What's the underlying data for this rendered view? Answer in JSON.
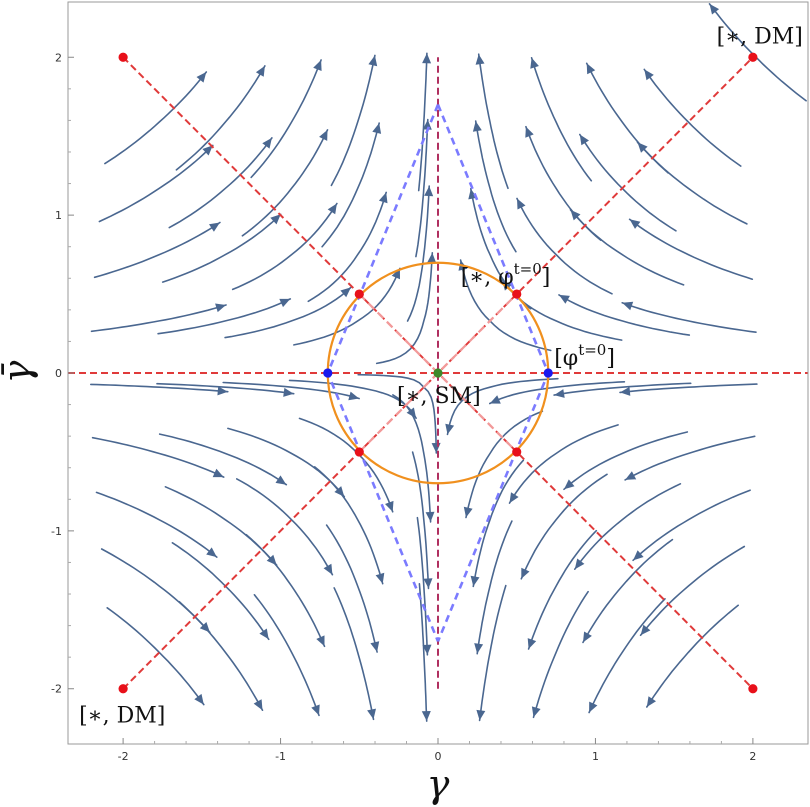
{
  "chart_data": {
    "type": "streamplot",
    "xlabel": "γ",
    "ylabel": "γ̄",
    "xlim": [
      -2.35,
      2.35
    ],
    "ylim": [
      -2.35,
      2.35
    ],
    "x_ticks": [
      -2,
      -1,
      0,
      1,
      2
    ],
    "y_ticks": [
      -2,
      -1,
      0,
      1,
      2
    ],
    "x_tick_labels": [
      "-2",
      "-1",
      "0",
      "1",
      "2"
    ],
    "y_tick_labels": [
      "-2",
      "-1",
      "0",
      "1",
      "2"
    ],
    "grid": false,
    "colors": {
      "stream": "#4a6790",
      "fixed_point_red": "#e8101a",
      "fixed_point_blue": "#1a1aee",
      "fixed_point_green": "#3c8a2a",
      "circle": "#f0901e",
      "separatrix_red": "#e03a3a",
      "separatrix_pink": "#f29a9a",
      "separatrix_blue": "#7b7bff",
      "separatrix_dark": "#b03060"
    },
    "vector_field": {
      "description": "saddle flow: inflow along gamma axis, outflow along gamma-bar axis",
      "u": "-x",
      "v": "y"
    },
    "circle": {
      "center": [
        0,
        0
      ],
      "radius": 0.7
    },
    "fixed_points": [
      {
        "x": 0,
        "y": 0,
        "color": "green"
      },
      {
        "x": -0.7,
        "y": 0,
        "color": "blue"
      },
      {
        "x": 0.7,
        "y": 0,
        "color": "blue"
      },
      {
        "x": -0.5,
        "y": 0.5,
        "color": "red"
      },
      {
        "x": 0.5,
        "y": 0.5,
        "color": "red"
      },
      {
        "x": -0.5,
        "y": -0.5,
        "color": "red"
      },
      {
        "x": 0.5,
        "y": -0.5,
        "color": "red"
      },
      {
        "x": -2,
        "y": 2,
        "color": "red"
      },
      {
        "x": 2,
        "y": 2,
        "color": "red"
      },
      {
        "x": -2,
        "y": -2,
        "color": "red"
      },
      {
        "x": 2,
        "y": -2,
        "color": "red"
      }
    ],
    "dashed_lines": [
      {
        "from": [
          -2,
          2
        ],
        "to": [
          2,
          -2
        ],
        "style": "red-dashed"
      },
      {
        "from": [
          -2,
          -2
        ],
        "to": [
          2,
          2
        ],
        "style": "red-dashed"
      },
      {
        "from": [
          -2.35,
          0
        ],
        "to": [
          2.35,
          0
        ],
        "style": "red-dashed"
      },
      {
        "from": [
          0,
          -2
        ],
        "to": [
          0,
          2
        ],
        "style": "dark-dashed"
      },
      {
        "from": [
          -0.5,
          0.5
        ],
        "to": [
          0.5,
          -0.5
        ],
        "style": "pink-dashed"
      },
      {
        "from": [
          -0.5,
          -0.5
        ],
        "to": [
          0.5,
          0.5
        ],
        "style": "pink-dashed"
      }
    ],
    "blue_dashed_paths": [
      [
        [
          0,
          1.7
        ],
        [
          -0.7,
          0
        ],
        [
          0,
          -1.7
        ]
      ],
      [
        [
          0,
          1.7
        ],
        [
          0.7,
          0
        ],
        [
          0,
          -1.7
        ]
      ]
    ],
    "annotations": [
      {
        "text": "[∗, DM]",
        "at": [
          2,
          2
        ],
        "anchor": "upper-right"
      },
      {
        "text": "[∗, DM]",
        "at": [
          -2,
          -2
        ],
        "anchor": "lower-left"
      },
      {
        "text": "[∗, SM]",
        "at": [
          0,
          0
        ],
        "anchor": "below-right"
      },
      {
        "text": "[∗, φ",
        "sup": "t=0",
        "suffix": "]",
        "at": [
          0.5,
          0.5
        ],
        "anchor": "above-left"
      },
      {
        "text": "[φ",
        "sup": "t=0",
        "suffix": "]",
        "at": [
          0.7,
          0
        ],
        "anchor": "above-right"
      }
    ]
  }
}
